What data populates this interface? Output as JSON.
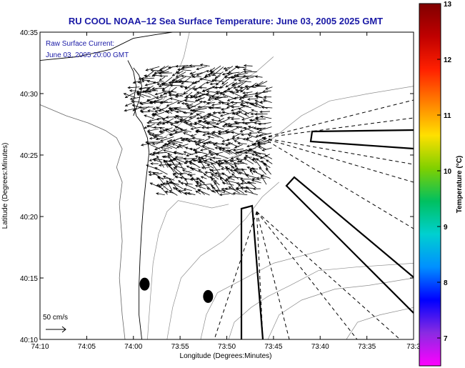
{
  "chart_data": {
    "type": "quiver",
    "title": "RU COOL  NOAA–12  Sea Surface Temperature:  June 03, 2005 2025 GMT",
    "xlabel": "Longitude (Degrees:Minutes)",
    "ylabel": "Latitude (Degrees:Minutes)",
    "x_ticks": [
      {
        "value": -74.1667,
        "label": "74:10"
      },
      {
        "value": -74.0833,
        "label": "74:05"
      },
      {
        "value": -74.0,
        "label": "74:00"
      },
      {
        "value": -73.9167,
        "label": "73:55"
      },
      {
        "value": -73.8333,
        "label": "73:50"
      },
      {
        "value": -73.75,
        "label": "73:45"
      },
      {
        "value": -73.6667,
        "label": "73:40"
      },
      {
        "value": -73.5833,
        "label": "73:35"
      },
      {
        "value": -73.5,
        "label": "73:3"
      }
    ],
    "y_ticks": [
      {
        "value": 40.1667,
        "label": "40:10"
      },
      {
        "value": 40.25,
        "label": "40:15"
      },
      {
        "value": 40.3333,
        "label": "40:20"
      },
      {
        "value": 40.4167,
        "label": "40:25"
      },
      {
        "value": 40.5,
        "label": "40:30"
      },
      {
        "value": 40.5833,
        "label": "40:35"
      }
    ],
    "xlim": [
      -74.1667,
      -73.5
    ],
    "ylim": [
      40.1667,
      40.5833
    ],
    "legend": {
      "line1": "Raw Surface Current:",
      "line2": "June 03, 2005 20:00 GMT",
      "placement": "top-left"
    },
    "scale_label": "50 cm/s",
    "colorbar": {
      "label": "Temperature (°C)",
      "min": 6.5,
      "max": 13,
      "ticks": [
        {
          "value": 7,
          "label": "7"
        },
        {
          "value": 8,
          "label": "8"
        },
        {
          "value": 9,
          "label": "9"
        },
        {
          "value": 10,
          "label": "10"
        },
        {
          "value": 11,
          "label": "11"
        },
        {
          "value": 12,
          "label": "12"
        },
        {
          "value": 13,
          "label": "13"
        }
      ],
      "colors": [
        "#ff00ff",
        "#8a2be2",
        "#0000ff",
        "#0090ff",
        "#00d0d0",
        "#00c060",
        "#80d000",
        "#ffe000",
        "#ff8000",
        "#ff2000",
        "#c00000",
        "#800000"
      ]
    },
    "vector_field": {
      "lon_range": [
        -74.0,
        -73.75
      ],
      "lat_range": [
        40.36,
        40.54
      ],
      "nx": 30,
      "ny": 26,
      "mean_direction": "west",
      "mean_speed_cm_s": 30
    },
    "hf_radar_sectors": [
      {
        "name": "east",
        "origin": [
          -73.77,
          40.44
        ]
      },
      {
        "name": "south",
        "origin": [
          -73.78,
          40.34
        ]
      }
    ],
    "markers": [
      {
        "lon": -73.98,
        "lat": 40.2417
      },
      {
        "lon": -73.8667,
        "lat": 40.225
      }
    ]
  }
}
